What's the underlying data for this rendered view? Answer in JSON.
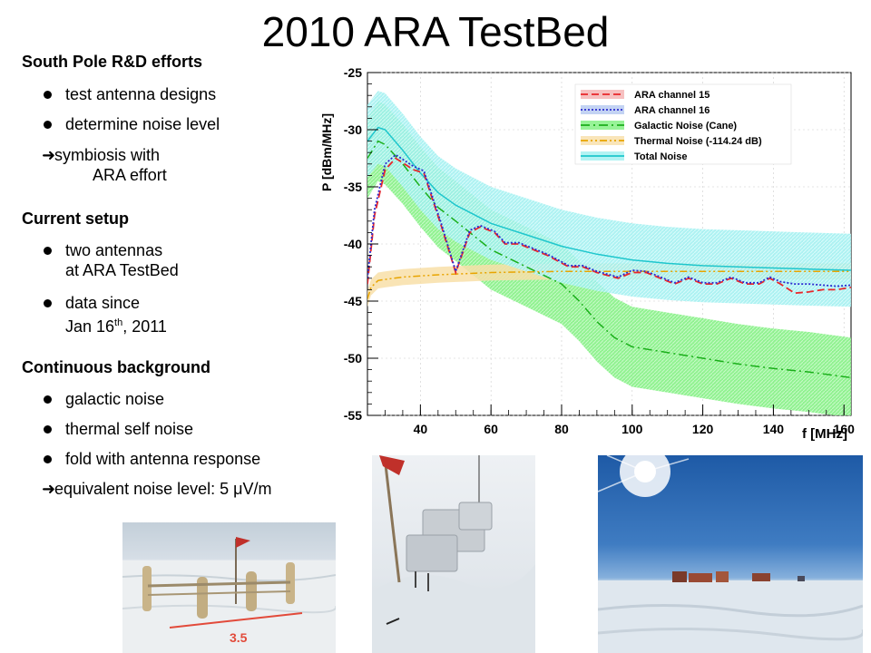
{
  "slide": {
    "title": "2010 ARA TestBed"
  },
  "left": {
    "s1_title": "South Pole R&D efforts",
    "s1_b1": "test antenna designs",
    "s1_b2": "determine noise level",
    "s1_arrow_l1": "symbiosis with",
    "s1_arrow_l2": "ARA effort",
    "s2_title": "Current setup",
    "s2_b1_l1": "two antennas",
    "s2_b1_l2": "at ARA TestBed",
    "s2_b2_l1": "data since",
    "s2_b2_l2a": "Jan 16",
    "s2_b2_sup": "th",
    "s2_b2_l2b": ", 2011",
    "s3_title": "Continuous background",
    "s3_b1": "galactic noise",
    "s3_b2": "thermal self noise",
    "s3_b3": "fold with antenna response",
    "s3_arrow": "equivalent noise level: 5 μV/m"
  },
  "photos": {
    "p1_measure": "3.5"
  },
  "colors": {
    "ch15": "#e8262a",
    "ch16": "#2b2bd0",
    "galactic": "#1aae1a",
    "galactic_band": "#7ef07e",
    "thermal": "#e8a400",
    "thermal_band": "#f8dfa8",
    "total": "#1ec6cc",
    "total_band": "#9ff0f0"
  },
  "chart_data": {
    "type": "line",
    "ylabel": "P [dBm/MHz]",
    "xlabel": "f [MHz]",
    "xlim": [
      25,
      162
    ],
    "ylim": [
      -55,
      -25
    ],
    "xticks": [
      40,
      60,
      80,
      100,
      120,
      140,
      160
    ],
    "yticks": [
      -25,
      -30,
      -35,
      -40,
      -45,
      -50,
      -55
    ],
    "legend_position": "top-right",
    "series": [
      {
        "name": "ARA channel 15",
        "color": "#e8262a",
        "style": "dashed",
        "x": [
          25,
          27,
          30,
          33,
          38,
          41,
          46,
          50,
          54,
          57,
          61,
          64,
          68,
          72,
          76,
          82,
          86,
          90,
          96,
          100,
          104,
          108,
          112,
          116,
          120,
          124,
          128,
          132,
          136,
          139,
          142,
          146,
          150,
          154,
          158,
          162
        ],
        "y": [
          -43.5,
          -37.5,
          -33.5,
          -32.5,
          -33.5,
          -33.8,
          -38.5,
          -42.5,
          -39.0,
          -38.5,
          -39.0,
          -40.0,
          -40.0,
          -40.5,
          -41.0,
          -42.0,
          -42.0,
          -42.5,
          -43.0,
          -42.5,
          -42.5,
          -43.0,
          -43.5,
          -43.0,
          -43.5,
          -43.5,
          -43.0,
          -43.5,
          -43.5,
          -43.0,
          -43.5,
          -44.3,
          -44.2,
          -44.0,
          -44.0,
          -43.8
        ]
      },
      {
        "name": "ARA channel 16",
        "color": "#2b2bd0",
        "style": "dotted",
        "x": [
          25,
          27,
          30,
          33,
          38,
          41,
          46,
          50,
          54,
          57,
          61,
          64,
          68,
          72,
          76,
          82,
          86,
          90,
          96,
          100,
          104,
          108,
          112,
          116,
          120,
          124,
          128,
          132,
          136,
          139,
          142,
          146,
          150,
          154,
          158,
          162
        ],
        "y": [
          -43.0,
          -37.0,
          -33.0,
          -32.2,
          -33.2,
          -33.6,
          -38.3,
          -42.4,
          -38.8,
          -38.4,
          -38.9,
          -39.9,
          -39.9,
          -40.4,
          -40.9,
          -41.9,
          -41.9,
          -42.4,
          -42.9,
          -42.3,
          -42.4,
          -42.9,
          -43.4,
          -42.9,
          -43.4,
          -43.4,
          -42.9,
          -43.4,
          -43.4,
          -42.9,
          -43.3,
          -43.5,
          -43.5,
          -43.6,
          -43.7,
          -43.6
        ]
      },
      {
        "name": "Galactic Noise (Cane)",
        "color": "#1aae1a",
        "style": "dashdot",
        "band": 3.5,
        "x": [
          25,
          28,
          30,
          35,
          40,
          45,
          50,
          60,
          70,
          80,
          85,
          90,
          95,
          100,
          110,
          120,
          130,
          140,
          150,
          162
        ],
        "y": [
          -32.5,
          -31.0,
          -31.3,
          -33.0,
          -35.0,
          -36.8,
          -38.0,
          -40.5,
          -42.0,
          -43.5,
          -45.0,
          -46.8,
          -48.2,
          -49.0,
          -49.5,
          -50.0,
          -50.5,
          -50.9,
          -51.2,
          -51.7
        ]
      },
      {
        "name": "Thermal Noise (-114.24 dB)",
        "color": "#e8a400",
        "style": "dashdotdot",
        "band": 0.7,
        "x": [
          25,
          26,
          28,
          30,
          35,
          45,
          60,
          80,
          100,
          130,
          162
        ],
        "y": [
          -44.8,
          -43.8,
          -43.2,
          -43.1,
          -42.9,
          -42.7,
          -42.5,
          -42.4,
          -42.4,
          -42.4,
          -42.4
        ]
      },
      {
        "name": "Total Noise",
        "color": "#1ec6cc",
        "style": "solid",
        "band": 3.2,
        "x": [
          25,
          28,
          30,
          35,
          40,
          45,
          50,
          60,
          70,
          80,
          90,
          100,
          110,
          120,
          130,
          140,
          150,
          162
        ],
        "y": [
          -31.0,
          -29.8,
          -30.0,
          -31.8,
          -33.8,
          -35.5,
          -36.6,
          -38.2,
          -39.2,
          -40.2,
          -40.9,
          -41.4,
          -41.7,
          -41.9,
          -42.0,
          -42.1,
          -42.2,
          -42.3
        ]
      }
    ]
  }
}
